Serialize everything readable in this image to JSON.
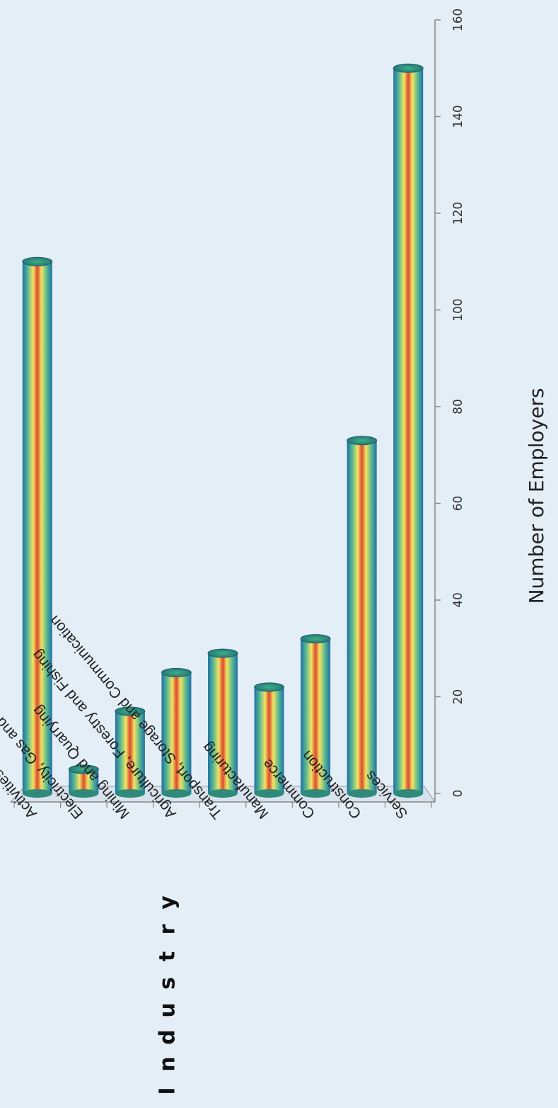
{
  "chart_data": {
    "type": "bar",
    "orientation": "horizontal, 3D cylinders, page rotated 180°",
    "categories": [
      "Activities not adequately described",
      "Electricity, Gas and Steam",
      "Mining and Quarrying",
      "Agriculture, Forestry and Fishing",
      "Transport, Storage and Communication",
      "Manufacturing",
      "Commerce",
      "Construction",
      "Services"
    ],
    "values": [
      110,
      5,
      17,
      25,
      29,
      22,
      32,
      73,
      150
    ],
    "xlabel": "Number of Employers",
    "ylabel": "Industry",
    "ticks": [
      "0",
      "20",
      "40",
      "60",
      "80",
      "100",
      "120",
      "140",
      "160"
    ],
    "xlim": [
      0,
      160
    ],
    "grid": false,
    "legend": "none",
    "colors": {
      "edge": "#1f6fa8",
      "mid": "#f7e05a",
      "core": "#d8402c",
      "cap": "#2f9a7a",
      "axis": "#888888"
    }
  }
}
